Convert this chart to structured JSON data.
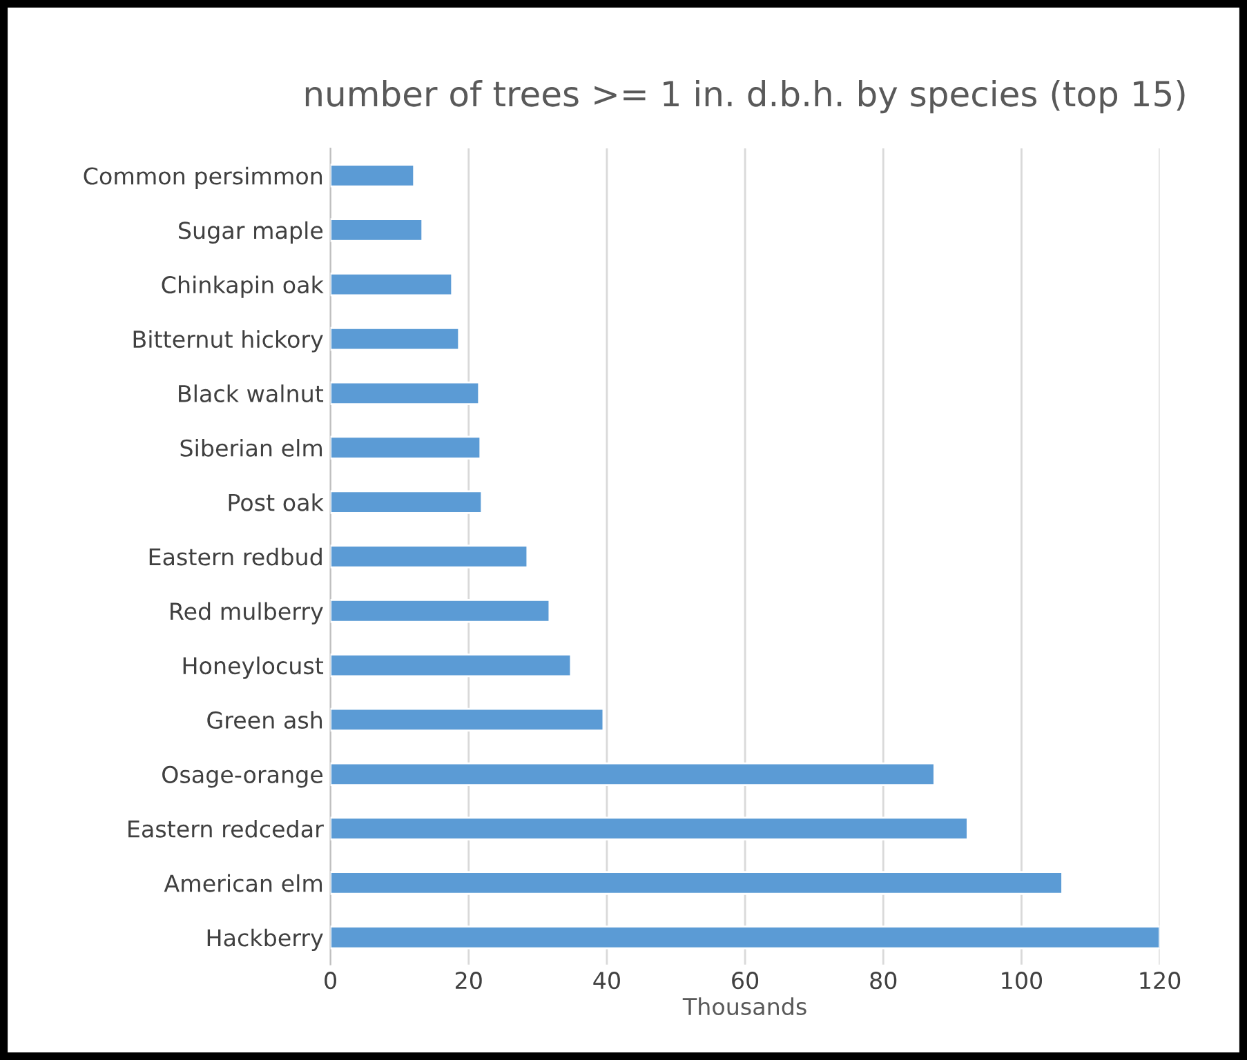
{
  "chart_data": {
    "type": "bar",
    "orientation": "horizontal",
    "title": "number of trees >= 1 in. d.b.h. by species (top 15)",
    "xlabel": "Thousands",
    "categories": [
      "Common persimmon",
      "Sugar maple",
      "Chinkapin oak",
      "Bitternut hickory",
      "Black walnut",
      "Siberian elm",
      "Post oak",
      "Eastern redbud",
      "Red mulberry",
      "Honeylocust",
      "Green ash",
      "Osage-orange",
      "Eastern redcedar",
      "American elm",
      "Hackberry"
    ],
    "values": [
      12.1,
      13.3,
      17.6,
      18.6,
      21.5,
      21.7,
      21.9,
      28.5,
      31.7,
      34.8,
      39.5,
      87.4,
      92.2,
      105.9,
      120
    ],
    "color": "#5b9bd5",
    "xlim": [
      0,
      120
    ],
    "xticks": [
      0,
      20,
      40,
      60,
      80,
      100,
      120
    ],
    "grid": "x",
    "legend": false
  }
}
